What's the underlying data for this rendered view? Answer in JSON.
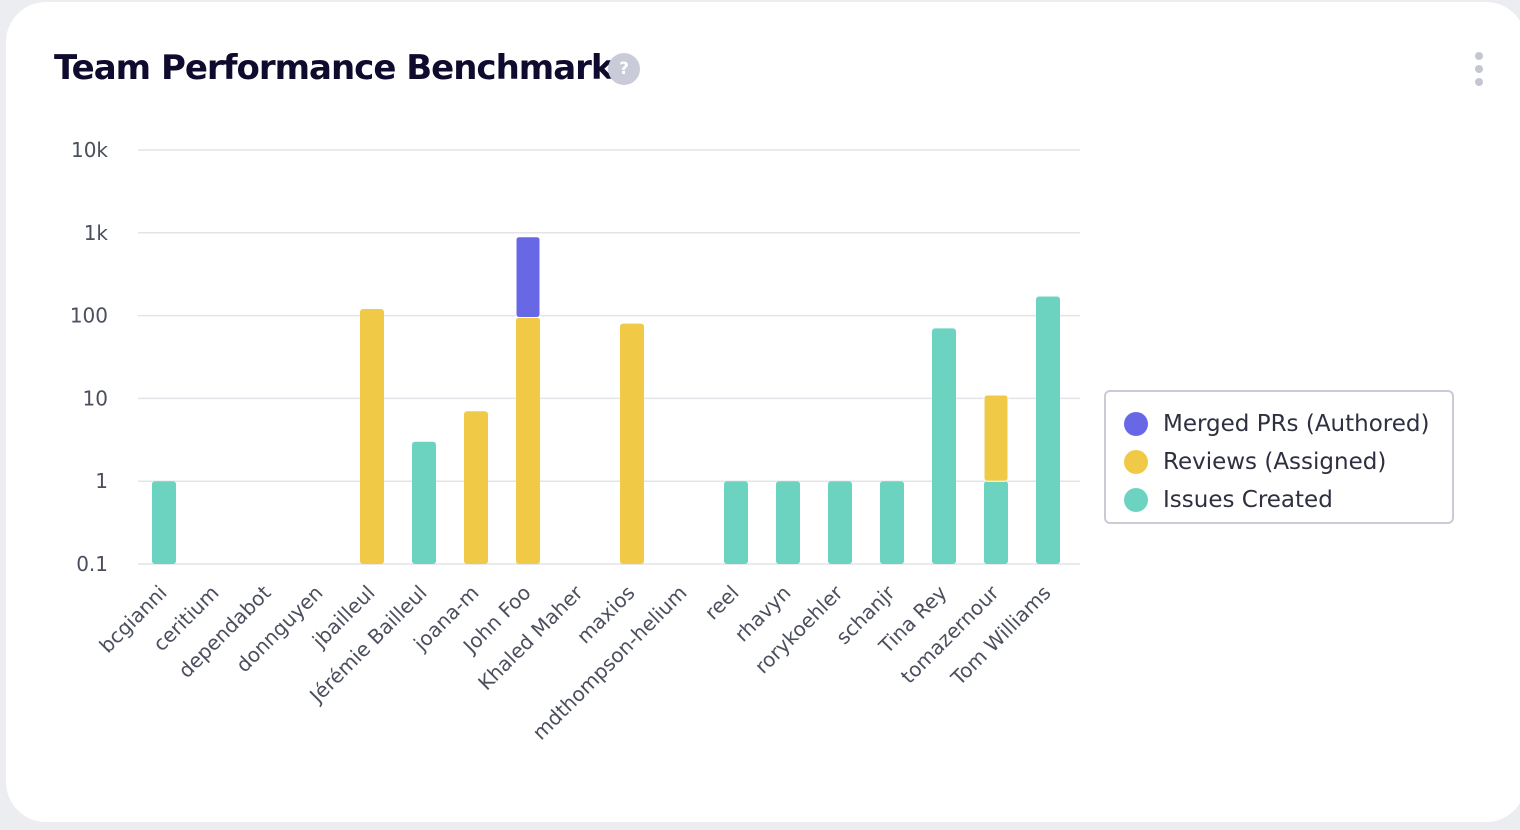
{
  "card": {
    "title": "Team Performance Benchmark",
    "help_glyph": "?",
    "menu_icon": "kebab-vertical-icon"
  },
  "colors": {
    "merged": "#6868e6",
    "reviews": "#f0ca47",
    "issues": "#6dd3c1",
    "grid": "#e3e4e9"
  },
  "chart_data": {
    "type": "bar",
    "stacked": true,
    "log_scale": true,
    "ylim": [
      0.1,
      10000
    ],
    "yticks": [
      "0.1",
      "1",
      "10",
      "100",
      "1k",
      "10k"
    ],
    "grid": true,
    "legend_position": "right",
    "title": "",
    "xlabel": "",
    "ylabel": "",
    "categories": [
      "bcgianni",
      "ceritium",
      "dependabot",
      "donnguyen",
      "jbailleul",
      "Jérémie Bailleul",
      "joana-m",
      "John Foo",
      "Khaled Maher",
      "maxios",
      "mdthompson-helium",
      "reel",
      "rhavyn",
      "rorykoehler",
      "schanjr",
      "Tina Rey",
      "tomazernour",
      "Tom Williams"
    ],
    "series": [
      {
        "name": "Issues Created",
        "color": "#6dd3c1",
        "values": [
          1,
          0,
          0,
          0,
          0,
          3,
          0,
          0,
          0,
          0,
          0,
          1,
          1,
          1,
          1,
          70,
          1,
          170
        ]
      },
      {
        "name": "Reviews (Assigned)",
        "color": "#f0ca47",
        "values": [
          0,
          0,
          0,
          0,
          120,
          0,
          7,
          95,
          0,
          80,
          0,
          0,
          0,
          0,
          0,
          0,
          10,
          0
        ]
      },
      {
        "name": "Merged PRs (Authored)",
        "color": "#6868e6",
        "values": [
          0,
          0,
          0,
          0,
          0,
          0,
          0,
          800,
          0,
          0,
          0,
          0,
          0,
          0,
          0,
          0,
          0,
          0
        ]
      }
    ]
  },
  "legend": {
    "items": [
      {
        "label": "Merged PRs (Authored)",
        "color": "#6868e6"
      },
      {
        "label": "Reviews (Assigned)",
        "color": "#f0ca47"
      },
      {
        "label": "Issues Created",
        "color": "#6dd3c1"
      }
    ]
  }
}
